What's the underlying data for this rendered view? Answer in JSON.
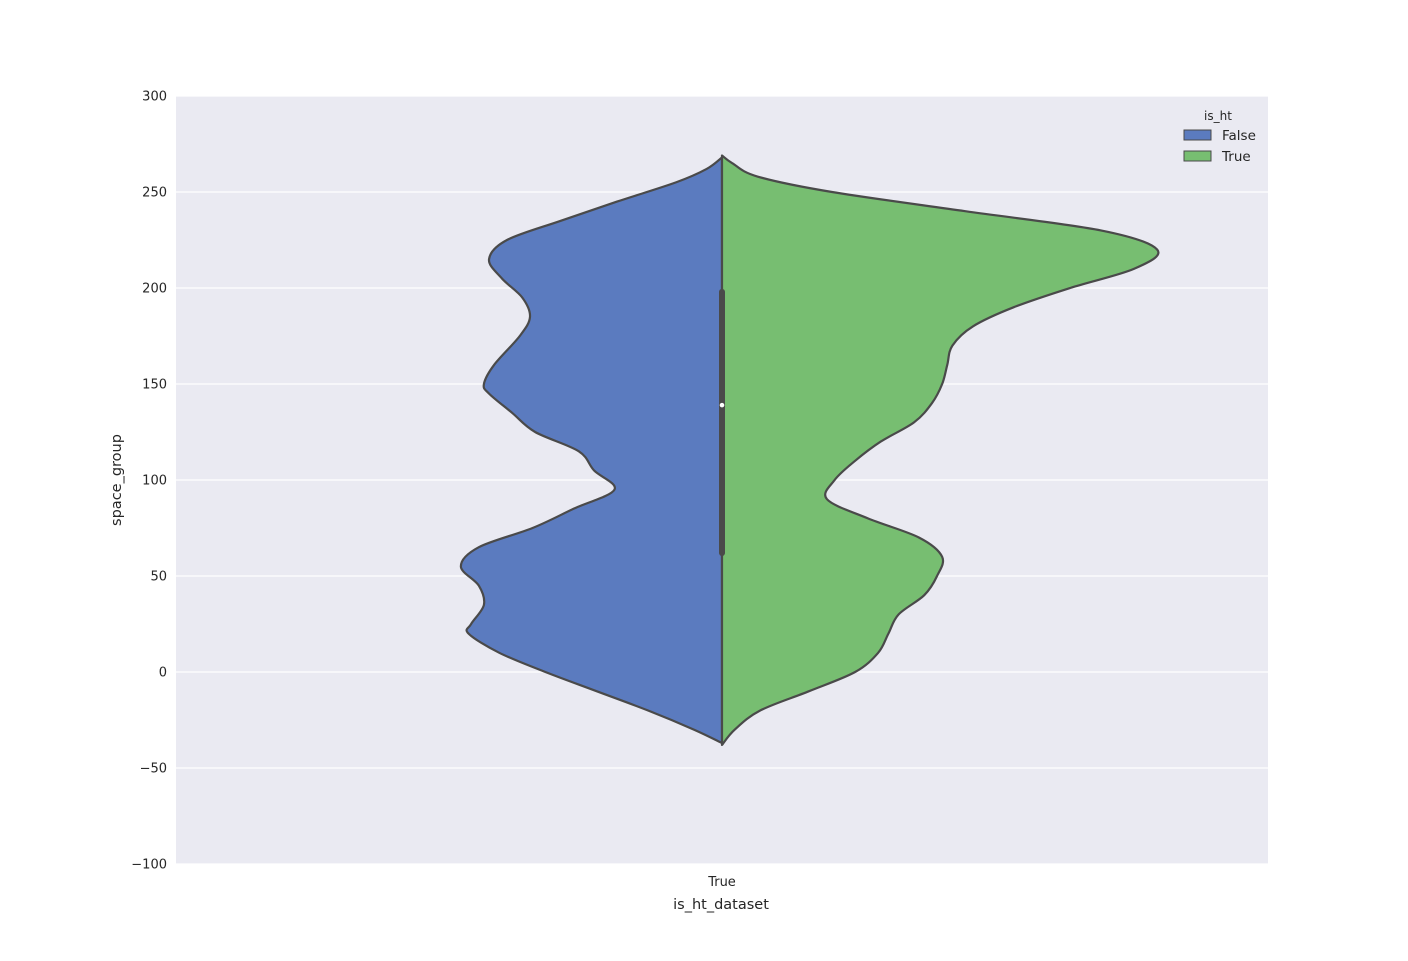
{
  "chart_data": {
    "type": "violin",
    "xlabel": "is_ht_dataset",
    "ylabel": "space_group",
    "categories": [
      "True"
    ],
    "ylim": [
      -100,
      300
    ],
    "yticks": [
      -100,
      -50,
      0,
      50,
      100,
      150,
      200,
      250,
      300
    ],
    "grid": true,
    "split": true,
    "legend": {
      "title": "is_ht",
      "position": "top-right",
      "entries": [
        "False",
        "True"
      ]
    },
    "series": [
      {
        "name": "False",
        "color": "#5b7bbf",
        "side": "left",
        "density_profile": [
          [
            -37,
            0.0
          ],
          [
            -30,
            0.11
          ],
          [
            -20,
            0.29
          ],
          [
            -10,
            0.49
          ],
          [
            0,
            0.69
          ],
          [
            10,
            0.87
          ],
          [
            20,
            0.99
          ],
          [
            25,
            0.98
          ],
          [
            35,
            0.93
          ],
          [
            45,
            0.95
          ],
          [
            55,
            1.02
          ],
          [
            65,
            0.95
          ],
          [
            75,
            0.74
          ],
          [
            85,
            0.58
          ],
          [
            95,
            0.42
          ],
          [
            105,
            0.5
          ],
          [
            115,
            0.56
          ],
          [
            125,
            0.73
          ],
          [
            135,
            0.82
          ],
          [
            145,
            0.91
          ],
          [
            150,
            0.93
          ],
          [
            160,
            0.89
          ],
          [
            175,
            0.79
          ],
          [
            185,
            0.75
          ],
          [
            195,
            0.78
          ],
          [
            205,
            0.86
          ],
          [
            215,
            0.91
          ],
          [
            225,
            0.84
          ],
          [
            235,
            0.63
          ],
          [
            245,
            0.41
          ],
          [
            255,
            0.18
          ],
          [
            262,
            0.06
          ],
          [
            268,
            0.0
          ]
        ]
      },
      {
        "name": "True",
        "color": "#77be71",
        "side": "right",
        "density_profile": [
          [
            -38,
            0.0
          ],
          [
            -30,
            0.05
          ],
          [
            -20,
            0.15
          ],
          [
            -10,
            0.34
          ],
          [
            0,
            0.52
          ],
          [
            10,
            0.61
          ],
          [
            20,
            0.65
          ],
          [
            30,
            0.69
          ],
          [
            40,
            0.79
          ],
          [
            50,
            0.84
          ],
          [
            60,
            0.86
          ],
          [
            70,
            0.77
          ],
          [
            80,
            0.57
          ],
          [
            90,
            0.41
          ],
          [
            100,
            0.44
          ],
          [
            110,
            0.52
          ],
          [
            120,
            0.62
          ],
          [
            130,
            0.75
          ],
          [
            140,
            0.82
          ],
          [
            150,
            0.86
          ],
          [
            160,
            0.88
          ],
          [
            170,
            0.9
          ],
          [
            180,
            0.98
          ],
          [
            190,
            1.14
          ],
          [
            200,
            1.36
          ],
          [
            210,
            1.61
          ],
          [
            220,
            1.7
          ],
          [
            230,
            1.48
          ],
          [
            240,
            0.95
          ],
          [
            250,
            0.43
          ],
          [
            258,
            0.14
          ],
          [
            265,
            0.04
          ],
          [
            269,
            0.0
          ]
        ]
      }
    ],
    "inner_box": {
      "q1": 62,
      "q3": 198,
      "median": 139,
      "whisker_low": 0,
      "whisker_high": 230
    }
  }
}
